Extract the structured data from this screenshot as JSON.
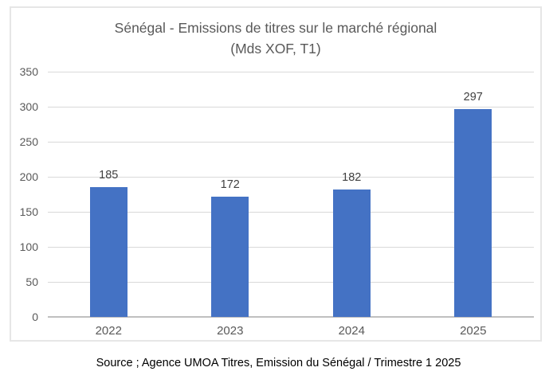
{
  "chart": {
    "title_line1": "Sénégal - Emissions de titres sur le marché régional",
    "title_line2": "(Mds XOF, T1)",
    "source": "Source ; Agence UMOA Titres, Emission du Sénégal / Trimestre 1 2025"
  },
  "chart_data": {
    "type": "bar",
    "title": "Sénégal - Emissions de titres sur le marché régional (Mds XOF, T1)",
    "categories": [
      "2022",
      "2023",
      "2024",
      "2025"
    ],
    "values": [
      185,
      172,
      182,
      297
    ],
    "data_labels": [
      "185",
      "172",
      "182",
      "297"
    ],
    "xlabel": "",
    "ylabel": "",
    "ylim": [
      0,
      350
    ],
    "yticks": [
      0,
      50,
      100,
      150,
      200,
      250,
      300,
      350
    ],
    "grid": true,
    "legend": false,
    "bar_color": "#4472c4",
    "gridline_color": "#d9d9d9",
    "axis_line_color": "#bfbfbf",
    "text_color": "#595959",
    "label_color": "#404040"
  }
}
